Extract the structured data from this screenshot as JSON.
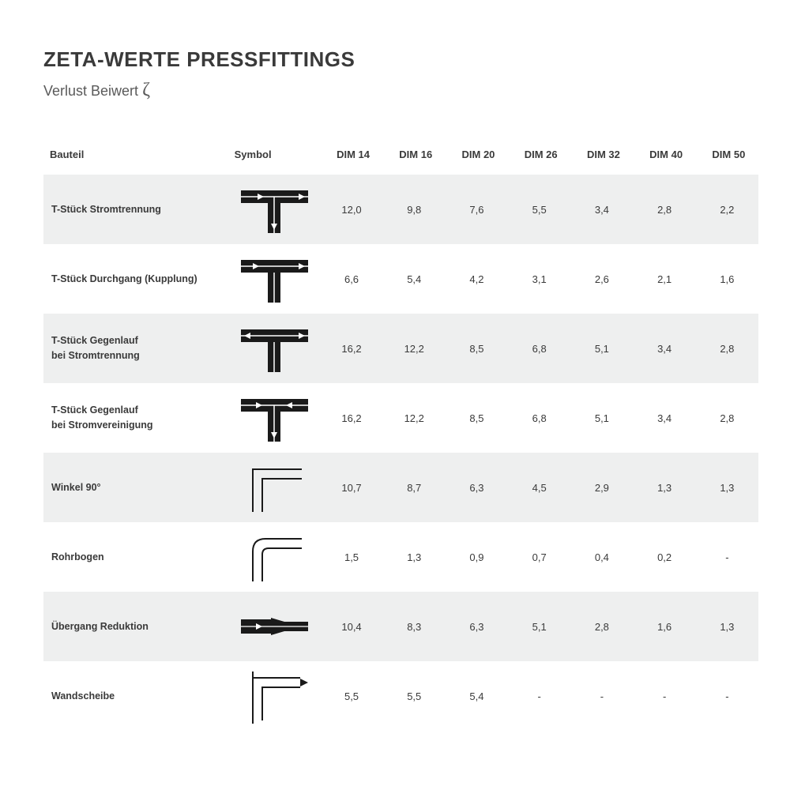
{
  "title": "ZETA-WERTE PRESSFITTINGS",
  "subtitle_pre": "Verlust Beiwert ",
  "subtitle_sym": "ζ",
  "colors": {
    "bg": "#ffffff",
    "stripe": "#eeefef",
    "text": "#3a3a3a",
    "subtext": "#5a5a5a",
    "symbol_fill": "#1a1a1a",
    "symbol_stroke": "#1a1a1a"
  },
  "columns": {
    "label": "Bauteil",
    "symbol": "Symbol",
    "dims": [
      "DIM 14",
      "DIM 16",
      "DIM 20",
      "DIM 26",
      "DIM 32",
      "DIM 40",
      "DIM 50"
    ]
  },
  "rows": [
    {
      "label": "T-Stück Stromtrennung",
      "symbol": "t_split_down",
      "values": [
        "12,0",
        "9,8",
        "7,6",
        "5,5",
        "3,4",
        "2,8",
        "2,2"
      ]
    },
    {
      "label": "T-Stück Durchgang (Kupplung)",
      "symbol": "t_through",
      "values": [
        "6,6",
        "5,4",
        "4,2",
        "3,1",
        "2,6",
        "2,1",
        "1,6"
      ]
    },
    {
      "label": "T-Stück Gegenlauf\nbei Stromtrennung",
      "symbol": "t_counter_sep",
      "values": [
        "16,2",
        "12,2",
        "8,5",
        "6,8",
        "5,1",
        "3,4",
        "2,8"
      ]
    },
    {
      "label": "T-Stück Gegenlauf\nbei Stromvereinigung",
      "symbol": "t_counter_join",
      "values": [
        "16,2",
        "12,2",
        "8,5",
        "6,8",
        "5,1",
        "3,4",
        "2,8"
      ]
    },
    {
      "label": "Winkel 90°",
      "symbol": "elbow_sharp",
      "values": [
        "10,7",
        "8,7",
        "6,3",
        "4,5",
        "2,9",
        "1,3",
        "1,3"
      ]
    },
    {
      "label": "Rohrbogen",
      "symbol": "elbow_round",
      "values": [
        "1,5",
        "1,3",
        "0,9",
        "0,7",
        "0,4",
        "0,2",
        "-"
      ]
    },
    {
      "label": "Übergang Reduktion",
      "symbol": "reducer",
      "values": [
        "10,4",
        "8,3",
        "6,3",
        "5,1",
        "2,8",
        "1,6",
        "1,3"
      ]
    },
    {
      "label": "Wandscheibe",
      "symbol": "wall_elbow",
      "values": [
        "5,5",
        "5,5",
        "5,4",
        "-",
        "-",
        "-",
        "-"
      ]
    }
  ]
}
